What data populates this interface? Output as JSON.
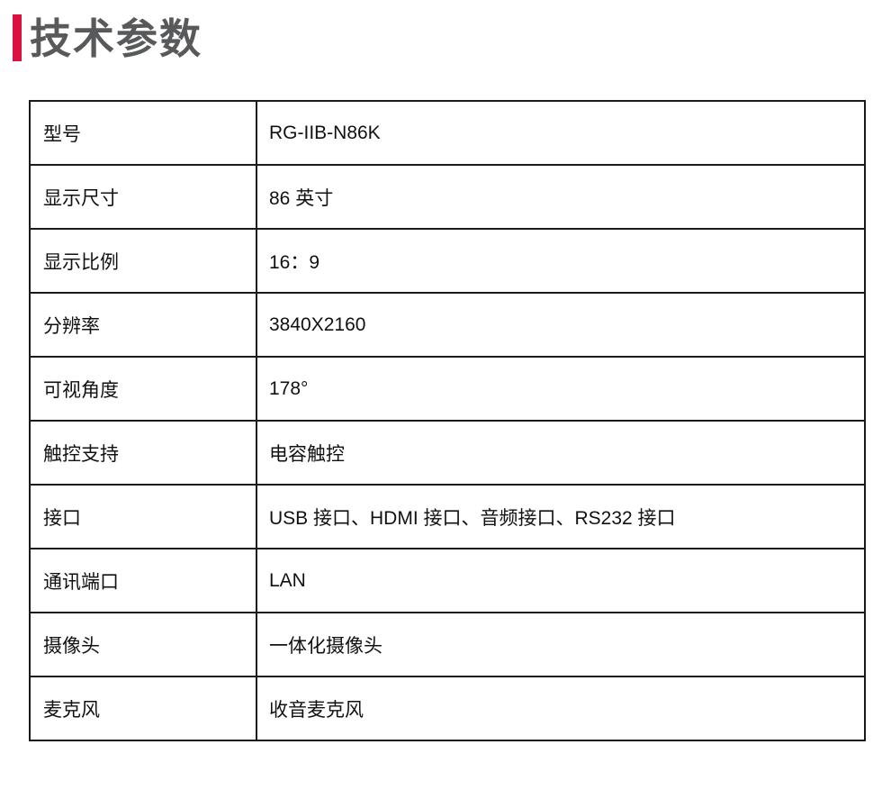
{
  "page": {
    "title": "技术参数",
    "accent_color": "#d9123f",
    "title_color": "#58595b",
    "border_color": "#1a1a1a"
  },
  "table": {
    "rows": [
      {
        "label": "型号",
        "value": "RG-IIB-N86K"
      },
      {
        "label": "显示尺寸",
        "value": "86 英寸"
      },
      {
        "label": "显示比例",
        "value": "16：9"
      },
      {
        "label": "分辨率",
        "value": "3840X2160"
      },
      {
        "label": "可视角度",
        "value": "178°"
      },
      {
        "label": "触控支持",
        "value": "电容触控"
      },
      {
        "label": "接口",
        "value": "USB 接口、HDMI 接口、音频接口、RS232 接口"
      },
      {
        "label": "通讯端口",
        "value": "LAN"
      },
      {
        "label": "摄像头",
        "value": "一体化摄像头"
      },
      {
        "label": "麦克风",
        "value": "收音麦克风"
      }
    ]
  }
}
